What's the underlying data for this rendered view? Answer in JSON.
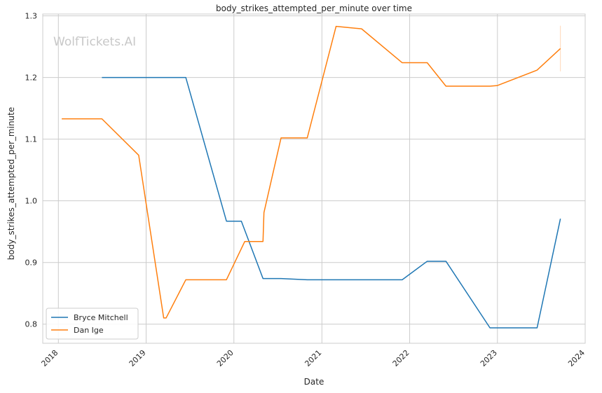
{
  "chart_data": {
    "type": "line",
    "title": "body_strikes_attempted_per_minute over time",
    "xlabel": "Date",
    "ylabel": "body_strikes_attempted_per_minute",
    "watermark": "WolfTickets.AI",
    "x_ticks": [
      "2018",
      "2019",
      "2020",
      "2021",
      "2022",
      "2023",
      "2024"
    ],
    "y_ticks": [
      "0.8",
      "0.9",
      "1.0",
      "1.1",
      "1.2",
      "1.3"
    ],
    "xlim": [
      "2017-10-28",
      "2024-01-01"
    ],
    "ylim": [
      0.769,
      1.303
    ],
    "grid": true,
    "legend_position": "bottom-left",
    "colors": {
      "Bryce Mitchell": "#1f77b4",
      "Dan Ige": "#ff7f0e"
    },
    "series": [
      {
        "name": "Bryce Mitchell",
        "points": [
          [
            "2018-07-01",
            1.2
          ],
          [
            "2019-06-15",
            1.2
          ],
          [
            "2019-12-01",
            0.967
          ],
          [
            "2020-02-01",
            0.967
          ],
          [
            "2020-05-01",
            0.874
          ],
          [
            "2020-07-15",
            0.874
          ],
          [
            "2020-11-01",
            0.872
          ],
          [
            "2021-12-01",
            0.872
          ],
          [
            "2022-03-15",
            0.902
          ],
          [
            "2022-06-01",
            0.902
          ],
          [
            "2022-12-01",
            0.794
          ],
          [
            "2023-06-15",
            0.794
          ],
          [
            "2023-09-20",
            0.971
          ]
        ]
      },
      {
        "name": "Dan Ige",
        "points": [
          [
            "2018-01-15",
            1.133
          ],
          [
            "2018-07-01",
            1.133
          ],
          [
            "2018-12-01",
            1.074
          ],
          [
            "2019-03-15",
            0.81
          ],
          [
            "2019-03-25",
            0.81
          ],
          [
            "2019-06-15",
            0.872
          ],
          [
            "2019-12-01",
            0.872
          ],
          [
            "2020-02-15",
            0.934
          ],
          [
            "2020-05-01",
            0.934
          ],
          [
            "2020-05-05",
            0.981
          ],
          [
            "2020-07-15",
            1.102
          ],
          [
            "2020-11-01",
            1.102
          ],
          [
            "2021-03-01",
            1.283
          ],
          [
            "2021-06-15",
            1.279
          ],
          [
            "2021-12-01",
            1.224
          ],
          [
            "2022-03-15",
            1.224
          ],
          [
            "2022-06-01",
            1.186
          ],
          [
            "2022-12-01",
            1.186
          ],
          [
            "2023-01-01",
            1.187
          ],
          [
            "2023-06-15",
            1.212
          ],
          [
            "2023-09-20",
            1.247
          ]
        ]
      }
    ],
    "error_band": {
      "series": "Dan Ige",
      "x": "2023-09-20",
      "low": 1.21,
      "high": 1.284
    }
  }
}
